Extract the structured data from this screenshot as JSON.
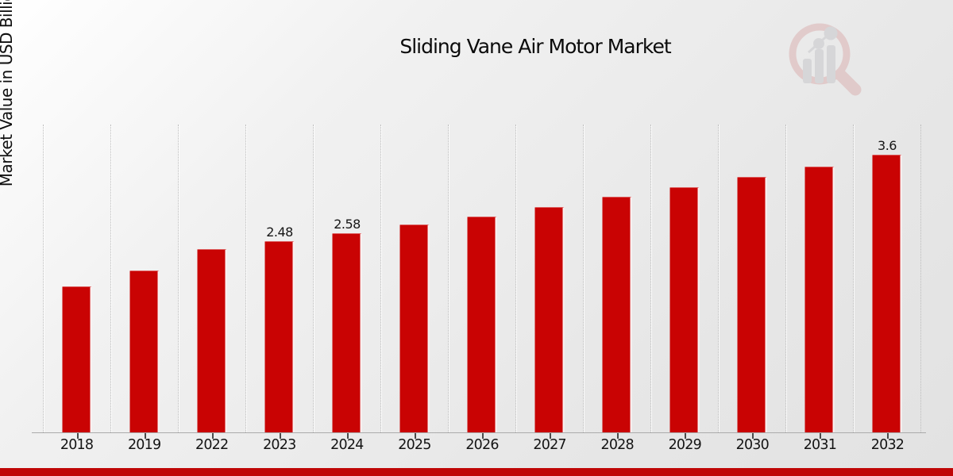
{
  "chart_data": {
    "type": "bar",
    "title": "Sliding Vane Air Motor Market",
    "xlabel": "",
    "ylabel": "Market Value in USD Billion",
    "ylim": [
      0,
      4
    ],
    "grid": "vertical dotted column separators",
    "legend": "none",
    "bar_color": "#c90303",
    "categories": [
      "2018",
      "2019",
      "2022",
      "2023",
      "2024",
      "2025",
      "2026",
      "2027",
      "2028",
      "2029",
      "2030",
      "2031",
      "2032"
    ],
    "values": [
      1.89,
      2.1,
      2.38,
      2.48,
      2.58,
      2.69,
      2.8,
      2.92,
      3.05,
      3.18,
      3.31,
      3.45,
      3.6
    ],
    "data_labels": [
      "",
      "",
      "",
      "2.48",
      "2.58",
      "",
      "",
      "",
      "",
      "",
      "",
      "",
      "3.6"
    ]
  },
  "branding": {
    "watermark_icon": "magnifier-bar-chart-logo-icon",
    "banner_color": "#bf0606"
  }
}
